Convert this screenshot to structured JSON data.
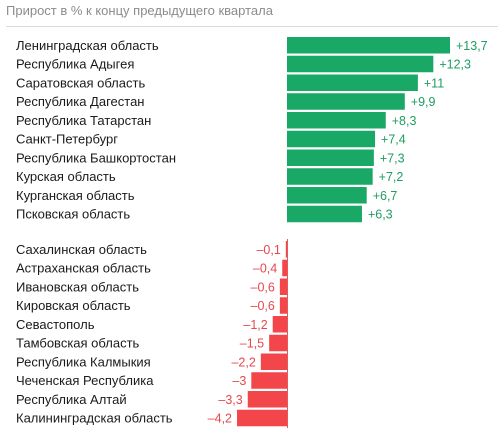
{
  "subtitle": "Прирост в % к концу предыдущего квартала",
  "colors": {
    "positive": "#19a866",
    "negative": "#f2464b",
    "axis": "#e05a5e"
  },
  "chart_data": {
    "type": "bar",
    "orientation": "horizontal",
    "title": "",
    "subtitle": "Прирост в % к концу предыдущего квартала",
    "groups": [
      {
        "name": "top",
        "categories": [
          "Ленинградская область",
          "Республика Адыгея",
          "Саратовская область",
          "Республика Дагестан",
          "Республика Татарстан",
          "Санкт-Петербург",
          "Республика Башкортостан",
          "Курская область",
          "Курганская область",
          "Псковская область"
        ],
        "values": [
          13.7,
          12.3,
          11,
          9.9,
          8.3,
          7.4,
          7.3,
          7.2,
          6.7,
          6.3
        ],
        "value_labels": [
          "+13,7",
          "+12,3",
          "+11",
          "+9,9",
          "+8,3",
          "+7,4",
          "+7,3",
          "+7,2",
          "+6,7",
          "+6,3"
        ]
      },
      {
        "name": "bottom",
        "categories": [
          "Сахалинская область",
          "Астраханская область",
          "Ивановская область",
          "Кировская область",
          "Севастополь",
          "Тамбовская область",
          "Республика Калмыкия",
          "Чеченская Республика",
          "Республика Алтай",
          "Калининградская область"
        ],
        "values": [
          -0.1,
          -0.4,
          -0.6,
          -0.6,
          -1.2,
          -1.5,
          -2.2,
          -3,
          -3.3,
          -4.2
        ],
        "value_labels": [
          "–0,1",
          "–0,4",
          "–0,6",
          "–0,6",
          "–1,2",
          "–1,5",
          "–2,2",
          "–3",
          "–3,3",
          "–4,2"
        ]
      }
    ]
  }
}
